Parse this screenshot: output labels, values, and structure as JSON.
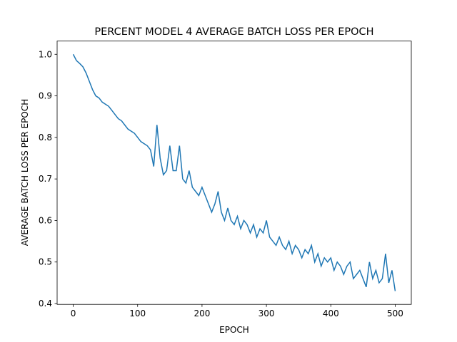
{
  "chart_data": {
    "type": "line",
    "title": "PERCENT MODEL 4 AVERAGE BATCH LOSS PER EPOCH",
    "x_label": "EPOCH",
    "y_label": "AVERAGE BATCH LOSS PER EPOCH",
    "x": [
      0,
      5,
      10,
      15,
      20,
      25,
      30,
      35,
      40,
      45,
      50,
      55,
      60,
      65,
      70,
      75,
      80,
      85,
      90,
      95,
      100,
      105,
      110,
      115,
      120,
      125,
      130,
      135,
      140,
      145,
      150,
      155,
      160,
      165,
      170,
      175,
      180,
      185,
      190,
      195,
      200,
      205,
      210,
      215,
      220,
      225,
      230,
      235,
      240,
      245,
      250,
      255,
      260,
      265,
      270,
      275,
      280,
      285,
      290,
      295,
      300,
      305,
      310,
      315,
      320,
      325,
      330,
      335,
      340,
      345,
      350,
      355,
      360,
      365,
      370,
      375,
      380,
      385,
      390,
      395,
      400,
      405,
      410,
      415,
      420,
      425,
      430,
      435,
      440,
      445,
      450,
      455,
      460,
      465,
      470,
      475,
      480,
      485,
      490,
      495,
      500
    ],
    "series": [
      {
        "name": "loss",
        "color": "#1f77b4",
        "values": [
          1.0,
          0.985,
          0.978,
          0.97,
          0.955,
          0.935,
          0.915,
          0.9,
          0.895,
          0.885,
          0.88,
          0.875,
          0.865,
          0.855,
          0.845,
          0.84,
          0.83,
          0.82,
          0.815,
          0.81,
          0.8,
          0.79,
          0.785,
          0.78,
          0.77,
          0.73,
          0.83,
          0.75,
          0.71,
          0.72,
          0.78,
          0.72,
          0.72,
          0.78,
          0.7,
          0.69,
          0.72,
          0.68,
          0.67,
          0.66,
          0.68,
          0.66,
          0.64,
          0.62,
          0.64,
          0.67,
          0.62,
          0.6,
          0.63,
          0.6,
          0.59,
          0.61,
          0.58,
          0.6,
          0.59,
          0.57,
          0.59,
          0.56,
          0.58,
          0.57,
          0.6,
          0.56,
          0.55,
          0.54,
          0.56,
          0.54,
          0.53,
          0.55,
          0.52,
          0.54,
          0.53,
          0.51,
          0.53,
          0.52,
          0.54,
          0.5,
          0.52,
          0.49,
          0.51,
          0.5,
          0.51,
          0.48,
          0.5,
          0.49,
          0.47,
          0.49,
          0.5,
          0.46,
          0.47,
          0.48,
          0.46,
          0.44,
          0.5,
          0.46,
          0.48,
          0.45,
          0.46,
          0.52,
          0.45,
          0.48,
          0.43
        ]
      }
    ],
    "xlim": [
      -25,
      525
    ],
    "ylim": [
      0.398,
      1.032
    ],
    "xticks": [
      0,
      100,
      200,
      300,
      400,
      500
    ],
    "yticks": [
      0.4,
      0.5,
      0.6,
      0.7,
      0.8,
      0.9,
      {
        "value": 1,
        "label": "1.0"
      }
    ]
  }
}
